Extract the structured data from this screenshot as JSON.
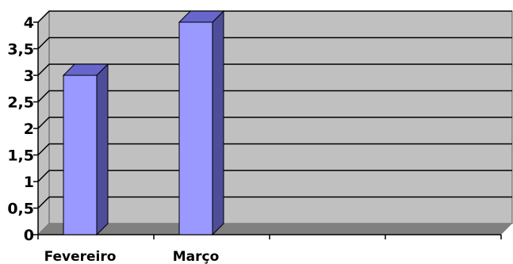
{
  "chart_data": {
    "type": "bar",
    "categories": [
      "Fevereiro",
      "Março",
      "",
      ""
    ],
    "values": [
      3,
      4,
      null,
      null
    ],
    "title": "",
    "xlabel": "",
    "ylabel": "",
    "ylim": [
      0,
      4
    ],
    "yticks": [
      "0",
      "0,5",
      "1",
      "1,5",
      "2",
      "2,5",
      "3",
      "3,5",
      "4"
    ],
    "grid": true,
    "legend": "none",
    "colors": {
      "bar_front": "#9999ff",
      "bar_side": "#4d4d99",
      "bar_top": "#6666cc",
      "plot_back": "#c0c0c0",
      "plot_floor": "#808080",
      "gridline": "#000000"
    }
  }
}
